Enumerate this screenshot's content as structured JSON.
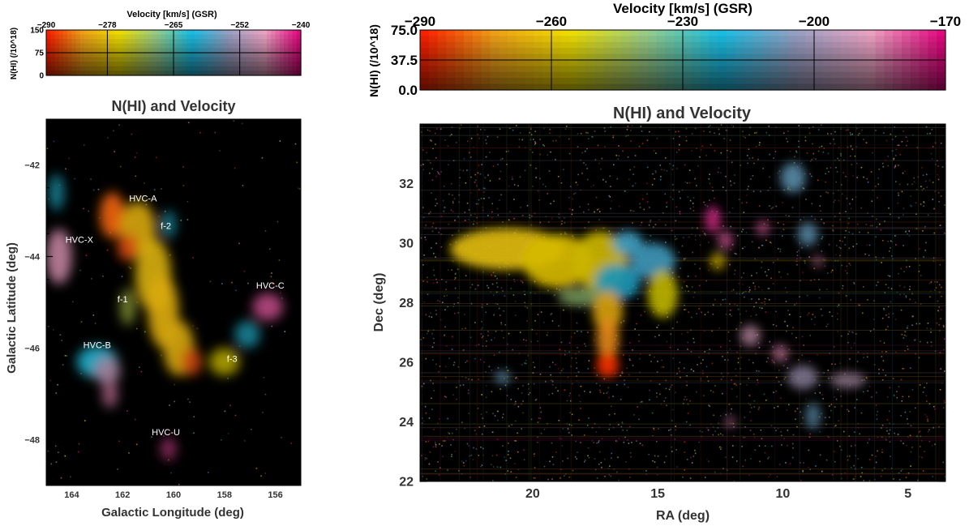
{
  "colors": {
    "ramp": [
      "#ff1a00",
      "#f4a419",
      "#f5e400",
      "#9ed28a",
      "#18c2ea",
      "#9aa3c8",
      "#f2a7c8",
      "#e6007e"
    ],
    "dark": "#000000",
    "annotation": "#ffffff"
  },
  "chart_data": [
    {
      "panel": "left",
      "type": "heatmap",
      "title": "N(HI) and Velocity",
      "xlabel": "Galactic Longitude (deg)",
      "ylabel": "Galactic Latitude (deg)",
      "xlim": [
        165,
        155
      ],
      "ylim": [
        -49,
        -41
      ],
      "x_ticks": [
        164,
        162,
        160,
        158,
        156
      ],
      "y_ticks": [
        -42,
        -44,
        -46,
        -48
      ],
      "colorbar": {
        "title": "Velocity [km/s] (GSR)",
        "ylabel": "N(HI) (/10^18)",
        "velocity_range": [
          -290,
          -240
        ],
        "velocity_ticks": [
          -290,
          -278,
          -265,
          -252,
          -240
        ],
        "velocity_gridlines": [
          -278,
          -265,
          -252
        ],
        "nhi_range": [
          0,
          150
        ],
        "nhi_ticks": [
          0,
          75,
          150
        ],
        "nhi_gridline": 75
      },
      "annotations": [
        {
          "text": "HVC-A",
          "x": 161.2,
          "y": -42.8
        },
        {
          "text": "f-2",
          "x": 160.3,
          "y": -43.4
        },
        {
          "text": "HVC-X",
          "x": 163.7,
          "y": -43.7
        },
        {
          "text": "HVC-C",
          "x": 156.2,
          "y": -44.7
        },
        {
          "text": "f-1",
          "x": 162.0,
          "y": -45.0
        },
        {
          "text": "HVC-B",
          "x": 163.0,
          "y": -46.0
        },
        {
          "text": "f-3",
          "x": 157.7,
          "y": -46.3
        },
        {
          "text": "HVC-U",
          "x": 160.3,
          "y": -47.9
        }
      ],
      "blobs": [
        {
          "x": 162.4,
          "y": -43.1,
          "rx": 0.5,
          "ry": 0.5,
          "rot": 0,
          "v": -286,
          "n": 140
        },
        {
          "x": 161.4,
          "y": -43.4,
          "rx": 0.7,
          "ry": 0.6,
          "rot": 0,
          "v": -280,
          "n": 120
        },
        {
          "x": 161.8,
          "y": -43.8,
          "rx": 0.4,
          "ry": 0.3,
          "rot": 0,
          "v": -287,
          "n": 110
        },
        {
          "x": 160.8,
          "y": -44.4,
          "rx": 0.7,
          "ry": 0.8,
          "rot": 0,
          "v": -279,
          "n": 120
        },
        {
          "x": 160.4,
          "y": -45.2,
          "rx": 0.6,
          "ry": 0.8,
          "rot": 0,
          "v": -280,
          "n": 125
        },
        {
          "x": 159.8,
          "y": -46.0,
          "rx": 0.6,
          "ry": 0.6,
          "rot": 0,
          "v": -280,
          "n": 120
        },
        {
          "x": 159.3,
          "y": -46.3,
          "rx": 0.4,
          "ry": 0.3,
          "rot": 0,
          "v": -287,
          "n": 100
        },
        {
          "x": 161.8,
          "y": -45.1,
          "rx": 0.3,
          "ry": 0.4,
          "rot": 0,
          "v": -272,
          "n": 60
        },
        {
          "x": 160.2,
          "y": -43.3,
          "rx": 0.3,
          "ry": 0.3,
          "rot": 0,
          "v": -262,
          "n": 60
        },
        {
          "x": 158.0,
          "y": -46.3,
          "rx": 0.6,
          "ry": 0.3,
          "rot": 0,
          "v": -276,
          "n": 80
        },
        {
          "x": 163.0,
          "y": -46.3,
          "rx": 0.8,
          "ry": 0.35,
          "rot": 0,
          "v": -262,
          "n": 120
        },
        {
          "x": 162.6,
          "y": -46.5,
          "rx": 0.5,
          "ry": 0.3,
          "rot": 0,
          "v": -250,
          "n": 95
        },
        {
          "x": 162.5,
          "y": -47.0,
          "rx": 0.3,
          "ry": 0.3,
          "rot": 0,
          "v": -246,
          "n": 70
        },
        {
          "x": 164.5,
          "y": -44.0,
          "rx": 0.5,
          "ry": 0.6,
          "rot": 0,
          "v": -247,
          "n": 100
        },
        {
          "x": 164.6,
          "y": -42.6,
          "rx": 0.3,
          "ry": 0.4,
          "rot": 0,
          "v": -262,
          "n": 70
        },
        {
          "x": 156.3,
          "y": -45.1,
          "rx": 0.6,
          "ry": 0.3,
          "rot": 0,
          "v": -244,
          "n": 95
        },
        {
          "x": 157.1,
          "y": -45.7,
          "rx": 0.5,
          "ry": 0.3,
          "rot": 0,
          "v": -262,
          "n": 70
        },
        {
          "x": 160.2,
          "y": -48.2,
          "rx": 0.3,
          "ry": 0.25,
          "rot": 0,
          "v": -243,
          "n": 60
        }
      ]
    },
    {
      "panel": "right",
      "type": "heatmap",
      "title": "N(HI) and Velocity",
      "xlabel": "RA (deg)",
      "ylabel": "Dec (deg)",
      "xlim": [
        24.5,
        3.5
      ],
      "ylim": [
        22,
        34
      ],
      "x_ticks": [
        20,
        15,
        10,
        5
      ],
      "y_ticks": [
        22,
        24,
        26,
        28,
        30,
        32
      ],
      "colorbar": {
        "title": "Velocity [km/s] (GSR)",
        "ylabel": "N(HI) (/10^18)",
        "velocity_range": [
          -290,
          -170
        ],
        "velocity_ticks": [
          -290,
          -260,
          -230,
          -200,
          -170
        ],
        "velocity_gridlines": [
          -260,
          -230,
          -200
        ],
        "nhi_range": [
          0,
          75
        ],
        "nhi_ticks": [
          "0.0",
          "37.5",
          "75.0"
        ],
        "nhi_gridline": 37.5
      },
      "blobs": [
        {
          "x": 21.0,
          "y": 29.8,
          "rx": 2.3,
          "ry": 0.7,
          "rot": 0,
          "v": -262,
          "n": 65
        },
        {
          "x": 19.0,
          "y": 29.4,
          "rx": 1.4,
          "ry": 0.9,
          "rot": 0,
          "v": -260,
          "n": 60
        },
        {
          "x": 17.3,
          "y": 29.4,
          "rx": 1.1,
          "ry": 1.0,
          "rot": 0,
          "v": -258,
          "n": 55
        },
        {
          "x": 16.2,
          "y": 30.0,
          "rx": 0.6,
          "ry": 0.4,
          "rot": 0,
          "v": -215,
          "n": 60
        },
        {
          "x": 15.2,
          "y": 29.4,
          "rx": 0.9,
          "ry": 0.6,
          "rot": 0,
          "v": -215,
          "n": 55
        },
        {
          "x": 16.6,
          "y": 28.7,
          "rx": 0.9,
          "ry": 0.6,
          "rot": 0,
          "v": -220,
          "n": 50
        },
        {
          "x": 14.8,
          "y": 28.3,
          "rx": 0.6,
          "ry": 0.8,
          "rot": 0,
          "v": -255,
          "n": 50
        },
        {
          "x": 18.0,
          "y": 28.2,
          "rx": 1.0,
          "ry": 0.3,
          "rot": 0,
          "v": -240,
          "n": 40
        },
        {
          "x": 17.0,
          "y": 27.7,
          "rx": 0.6,
          "ry": 0.7,
          "rot": 0,
          "v": -268,
          "n": 60
        },
        {
          "x": 17.0,
          "y": 26.8,
          "rx": 0.45,
          "ry": 0.7,
          "rot": 0,
          "v": -275,
          "n": 65
        },
        {
          "x": 17.0,
          "y": 25.9,
          "rx": 0.45,
          "ry": 0.4,
          "rot": 0,
          "v": -287,
          "n": 72
        },
        {
          "x": 21.2,
          "y": 25.5,
          "rx": 0.3,
          "ry": 0.2,
          "rot": 0,
          "v": -210,
          "n": 45
        },
        {
          "x": 12.8,
          "y": 30.8,
          "rx": 0.3,
          "ry": 0.45,
          "rot": 0,
          "v": -175,
          "n": 55
        },
        {
          "x": 12.3,
          "y": 30.1,
          "rx": 0.3,
          "ry": 0.3,
          "rot": 0,
          "v": -180,
          "n": 45
        },
        {
          "x": 12.6,
          "y": 29.4,
          "rx": 0.3,
          "ry": 0.3,
          "rot": 0,
          "v": -262,
          "n": 40
        },
        {
          "x": 9.6,
          "y": 32.2,
          "rx": 0.5,
          "ry": 0.5,
          "rot": 0,
          "v": -210,
          "n": 50
        },
        {
          "x": 9.0,
          "y": 30.3,
          "rx": 0.4,
          "ry": 0.4,
          "rot": 0,
          "v": -210,
          "n": 45
        },
        {
          "x": 10.8,
          "y": 30.5,
          "rx": 0.25,
          "ry": 0.25,
          "rot": 0,
          "v": -180,
          "n": 40
        },
        {
          "x": 11.3,
          "y": 26.9,
          "rx": 0.4,
          "ry": 0.35,
          "rot": 0,
          "v": -190,
          "n": 40
        },
        {
          "x": 10.1,
          "y": 26.3,
          "rx": 0.3,
          "ry": 0.3,
          "rot": 0,
          "v": -185,
          "n": 35
        },
        {
          "x": 9.2,
          "y": 25.5,
          "rx": 0.6,
          "ry": 0.4,
          "rot": 0,
          "v": -200,
          "n": 40
        },
        {
          "x": 7.4,
          "y": 25.4,
          "rx": 0.7,
          "ry": 0.25,
          "rot": 0,
          "v": -195,
          "n": 35
        },
        {
          "x": 8.8,
          "y": 24.2,
          "rx": 0.3,
          "ry": 0.45,
          "rot": 0,
          "v": -210,
          "n": 35
        },
        {
          "x": 12.1,
          "y": 24.0,
          "rx": 0.2,
          "ry": 0.2,
          "rot": 0,
          "v": -185,
          "n": 25
        },
        {
          "x": 8.6,
          "y": 29.4,
          "rx": 0.2,
          "ry": 0.2,
          "rot": 0,
          "v": -185,
          "n": 25
        }
      ]
    }
  ]
}
